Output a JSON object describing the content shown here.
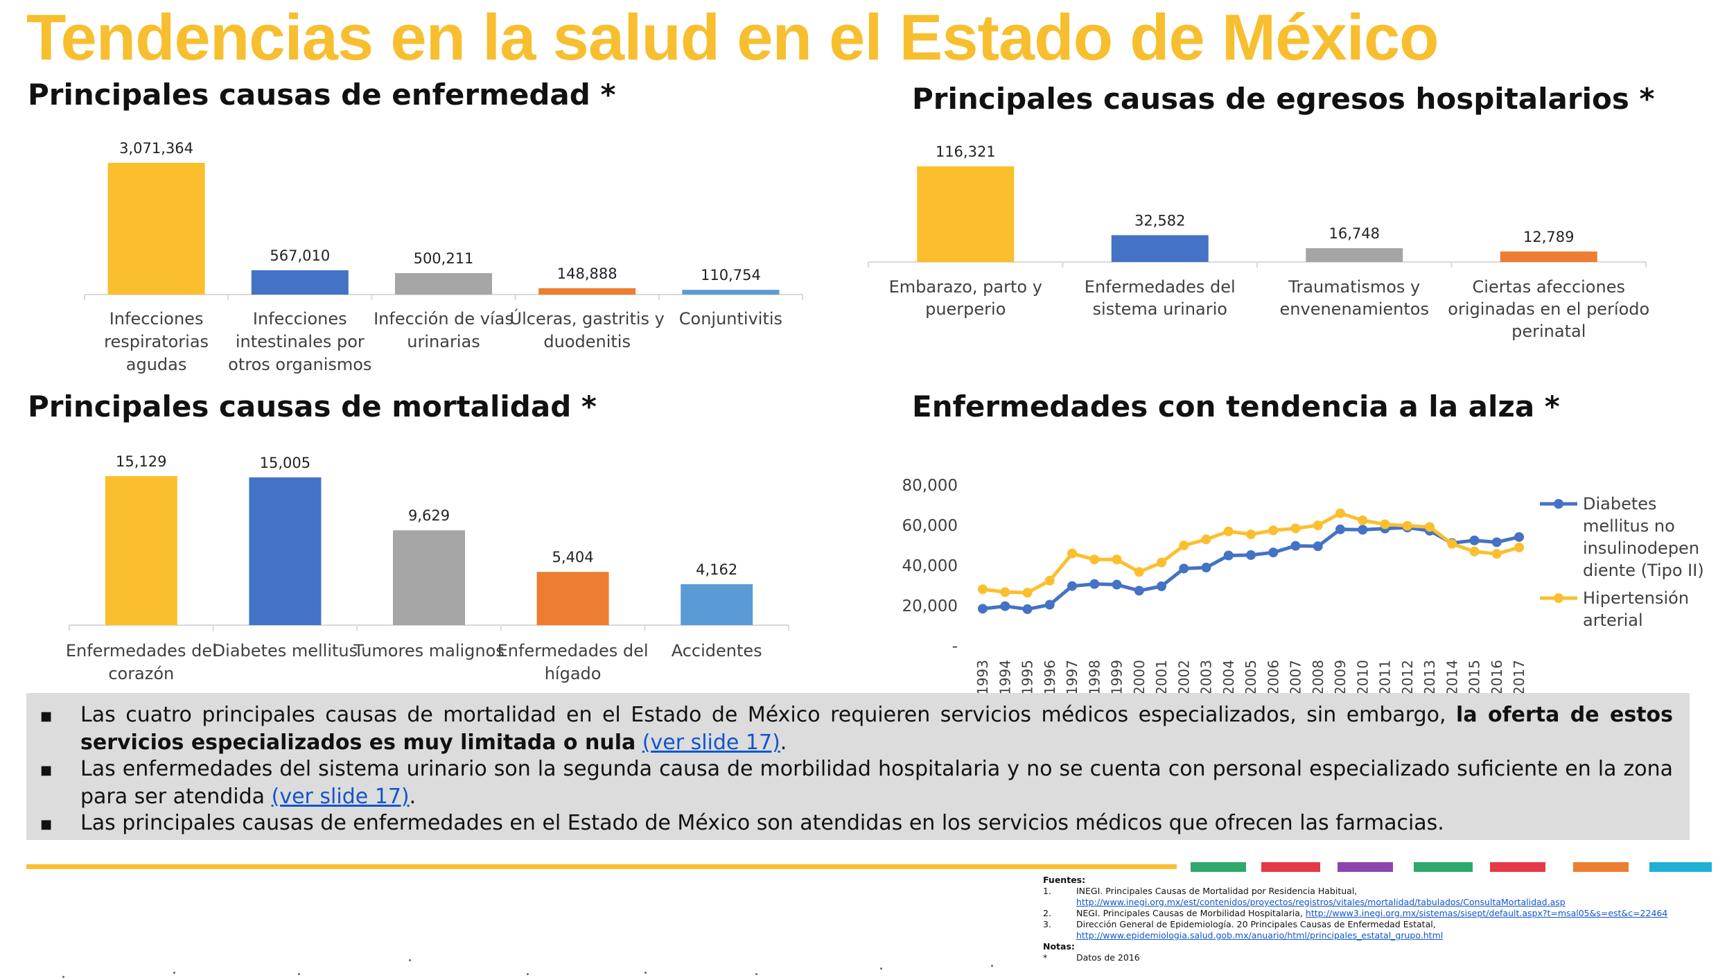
{
  "page": {
    "title": "Tendencias en la salud en el Estado de México"
  },
  "colors": {
    "yellow": "#fbbf2e",
    "blue": "#4472c4",
    "gray": "#a5a5a5",
    "orange": "#ed7d31",
    "lightblue": "#5b9bd5",
    "title_yellow": "#f7bf2f",
    "panel_bg": "#dcdcdc"
  },
  "chart_data": [
    {
      "id": "enfermedad",
      "type": "bar",
      "title": "Principales causas de enfermedad *",
      "categories": [
        [
          "Infecciones",
          "respiratorias",
          "agudas"
        ],
        [
          "Infecciones",
          "intestinales por",
          "otros organismos"
        ],
        [
          "Infección de vías",
          "urinarias"
        ],
        [
          "Úlceras, gastritis y",
          "duodenitis"
        ],
        [
          "Conjuntivitis"
        ]
      ],
      "values": [
        3071364,
        567010,
        500211,
        148888,
        110754
      ],
      "labels": [
        "3,071,364",
        "567,010",
        "500,211",
        "148,888",
        "110,754"
      ],
      "colors": [
        "#fbbf2e",
        "#4472c4",
        "#a5a5a5",
        "#ed7d31",
        "#5b9bd5"
      ]
    },
    {
      "id": "egresos",
      "type": "bar",
      "title": "Principales causas de egresos hospitalarios *",
      "categories": [
        [
          "Embarazo, parto y",
          "puerperio"
        ],
        [
          "Enfermedades del",
          "sistema urinario"
        ],
        [
          "Traumatismos y",
          "envenenamientos"
        ],
        [
          "Ciertas afecciones",
          "originadas en el período",
          "perinatal"
        ]
      ],
      "values": [
        116321,
        32582,
        16748,
        12789
      ],
      "labels": [
        "116,321",
        "32,582",
        "16,748",
        "12,789"
      ],
      "colors": [
        "#fbbf2e",
        "#4472c4",
        "#a5a5a5",
        "#ed7d31"
      ]
    },
    {
      "id": "mortalidad",
      "type": "bar",
      "title": "Principales causas de mortalidad *",
      "categories": [
        [
          "Enfermedades del",
          "corazón"
        ],
        [
          "Diabetes mellitus"
        ],
        [
          "Tumores malignos"
        ],
        [
          "Enfermedades del",
          "hígado"
        ],
        [
          "Accidentes"
        ]
      ],
      "values": [
        15129,
        15005,
        9629,
        5404,
        4162
      ],
      "labels": [
        "15,129",
        "15,005",
        "9,629",
        "5,404",
        "4,162"
      ],
      "colors": [
        "#fbbf2e",
        "#4472c4",
        "#a5a5a5",
        "#ed7d31",
        "#5b9bd5"
      ]
    },
    {
      "id": "tendencia",
      "type": "line",
      "title": "Enfermedades con tendencia a la alza *",
      "x": [
        "1993",
        "1994",
        "1995",
        "1996",
        "1997",
        "1998",
        "1999",
        "2000",
        "2001",
        "2002",
        "2003",
        "2004",
        "2005",
        "2006",
        "2007",
        "2008",
        "2009",
        "2010",
        "2011",
        "2012",
        "2013",
        "2014",
        "2015",
        "2016",
        "2017"
      ],
      "ylim": [
        0,
        80000
      ],
      "yticks": [
        {
          "value": 0,
          "label": "-"
        },
        {
          "value": 20000,
          "label": "20,000"
        },
        {
          "value": 40000,
          "label": "40,000"
        },
        {
          "value": 60000,
          "label": "60,000"
        },
        {
          "value": 80000,
          "label": "80,000"
        }
      ],
      "legend_position": "right",
      "series": [
        {
          "name": "Diabetes mellitus no insulinodependiente (Tipo II)",
          "legend_lines": [
            "Diabetes",
            "mellitus no",
            "insulinodepen",
            "diente (Tipo II)"
          ],
          "color": "#4472c4",
          "values": [
            18500,
            19800,
            18300,
            20500,
            29800,
            30800,
            30500,
            27500,
            29700,
            38500,
            39000,
            45000,
            45200,
            46500,
            49800,
            49600,
            58000,
            57800,
            58400,
            58900,
            57300,
            51200,
            52500,
            51600,
            54200
          ]
        },
        {
          "name": "Hipertensión arterial",
          "legend_lines": [
            "Hipertensión",
            "arterial"
          ],
          "color": "#fbbf2e",
          "values": [
            28200,
            26800,
            26500,
            32500,
            46000,
            43000,
            43000,
            36800,
            41500,
            50000,
            53000,
            57000,
            55500,
            57500,
            58500,
            60000,
            66000,
            62500,
            60500,
            59800,
            59200,
            50800,
            47000,
            45800,
            49000
          ]
        }
      ]
    }
  ],
  "notes": {
    "bullets": [
      {
        "text": "Las cuatro principales causas de mortalidad en el Estado de México requieren servicios médicos especializados, sin embargo, ",
        "bold": "la oferta de estos servicios especializados es muy limitada o nula",
        "link": "(ver slide 17)",
        "tail": "."
      },
      {
        "text": "Las enfermedades del sistema urinario son la segunda causa de morbilidad hospitalaria y no se cuenta con personal especializado suficiente en la zona para ser atendida ",
        "link": "(ver slide 17)",
        "tail": "."
      },
      {
        "text": "Las principales causas de enfermedades en el Estado de México son atendidas en los servicios médicos que ofrecen las farmacias."
      }
    ]
  },
  "sources": {
    "heading": "Fuentes:",
    "items": [
      {
        "num": "1.",
        "text": "INEGI. Principales Causas de Mortalidad por Residencia Habitual,",
        "link": "http://www.inegi.org.mx/est/contenidos/proyectos/registros/vitales/mortalidad/tabulados/ConsultaMortalidad.asp"
      },
      {
        "num": "2.",
        "text": "NEGI.  Principales Causas de Morbilidad Hospitalaria,",
        "link": "http://www3.inegi.org.mx/sistemas/sisept/default.aspx?t=msal05&s=est&c=22464"
      },
      {
        "num": "3.",
        "text": "Dirección General de Epidemiología. 20 Principales Causas de Enfermedad Estatal,",
        "link": "http://www.epidemiologia.salud.gob.mx/anuario/html/principales_estatal_grupo.html"
      }
    ],
    "notes_heading": "Notas:",
    "note_mark": "*",
    "note_text": "Datos de 2016"
  }
}
